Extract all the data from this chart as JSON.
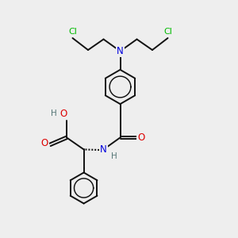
{
  "background_color": "#eeeeee",
  "atom_colors": {
    "C": "#000000",
    "N": "#0000dd",
    "O": "#dd0000",
    "Cl": "#00bb00",
    "H": "#557777"
  },
  "bond_color": "#111111",
  "bond_width": 1.4,
  "figsize": [
    3.0,
    3.0
  ],
  "dpi": 100
}
